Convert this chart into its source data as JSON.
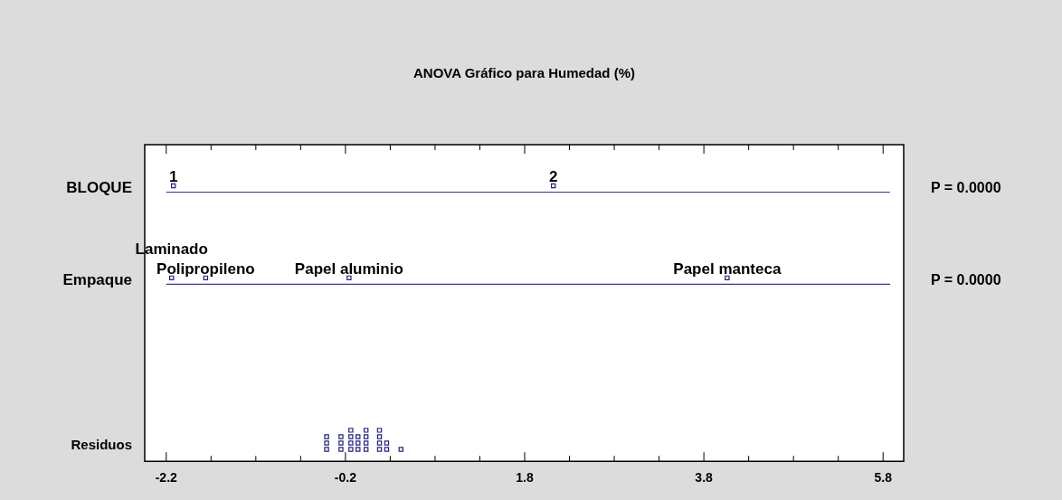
{
  "chart_data": {
    "type": "scatter",
    "title": "ANOVA Gráfico para Humedad (%)",
    "orientation": "horizontal",
    "marker": "square",
    "categories": [
      "BLOQUE",
      "Empaque",
      "Residuos"
    ],
    "xlim": [
      -2.44,
      6.03
    ],
    "xticks": [
      -2.2,
      {
        "value": -1.7,
        "label": null
      },
      {
        "value": -1.2,
        "label": null
      },
      {
        "value": -0.7,
        "label": null
      },
      -0.2,
      {
        "value": 0.3,
        "label": null
      },
      {
        "value": 0.8,
        "label": null
      },
      {
        "value": 1.3,
        "label": null
      },
      1.8,
      {
        "value": 2.3,
        "label": null
      },
      {
        "value": 2.8,
        "label": null
      },
      {
        "value": 3.3,
        "label": null
      },
      3.8,
      {
        "value": 4.3,
        "label": null
      },
      {
        "value": 4.8,
        "label": null
      },
      {
        "value": 5.3,
        "label": null
      },
      5.8
    ],
    "series": [
      {
        "color": "#22227a",
        "x": [
          "BLOQUE",
          "BLOQUE",
          "Empaque",
          "Empaque",
          "Empaque",
          "Empaque",
          "Residuos",
          "Residuos",
          "Residuos",
          "Residuos",
          "Residuos",
          "Residuos",
          "Residuos",
          "Residuos",
          "Residuos",
          "Residuos",
          "Residuos",
          "Residuos",
          "Residuos",
          "Residuos",
          "Residuos",
          "Residuos",
          "Residuos",
          "Residuos",
          "Residuos",
          "Residuos",
          "Residuos",
          "Residuos",
          "Residuos",
          "Residuos"
        ],
        "values": [
          -2.12,
          2.12,
          -2.14,
          -1.76,
          -0.16,
          4.06,
          -0.41,
          -0.41,
          -0.41,
          -0.25,
          -0.25,
          -0.25,
          -0.14,
          -0.14,
          -0.14,
          -0.14,
          -0.06,
          -0.06,
          -0.06,
          0.03,
          0.03,
          0.03,
          0.03,
          0.18,
          0.18,
          0.18,
          0.18,
          0.26,
          0.26,
          0.42
        ]
      }
    ],
    "ref_lines": [
      {
        "axis": "y",
        "value": "BLOQUE",
        "color": "#3a3a8c"
      },
      {
        "axis": "y",
        "value": "Empaque",
        "color": "#3a3a8c"
      }
    ],
    "annotations": [
      {
        "text": "1",
        "x": -2.12,
        "y": "BLOQUE"
      },
      {
        "text": "2",
        "x": 2.12,
        "y": "BLOQUE"
      },
      {
        "text": "Laminado",
        "x": -2.14,
        "y": "Empaque"
      },
      {
        "text": "Polipropileno",
        "x": -1.76,
        "y": "Empaque"
      },
      {
        "text": "Papel aluminio",
        "x": -0.16,
        "y": "Empaque"
      },
      {
        "text": "Papel manteca",
        "x": 4.06,
        "y": "Empaque"
      },
      "P = 0.0000",
      "P = 0.0000"
    ]
  }
}
